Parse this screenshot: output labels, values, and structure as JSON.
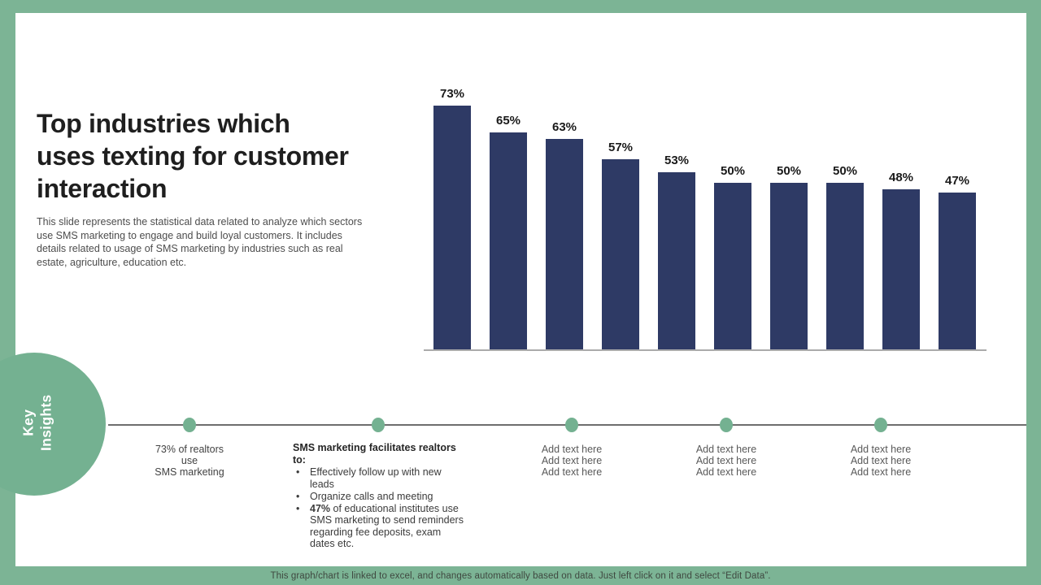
{
  "slide": {
    "title": "Top industries which uses texting for customer interaction",
    "description": "This slide represents the statistical data related to analyze which sectors use SMS marketing to engage and build loyal customers. It includes details related to usage of SMS marketing by industries such as real estate, agriculture, education etc.",
    "footer_note": "This graph/chart is linked to excel, and changes automatically based on data. Just left click on it and select “Edit Data”."
  },
  "colors": {
    "frame_green": "#7CB495",
    "accent_green": "#74B191",
    "bar_navy": "#2E3A65",
    "axis_gray": "#ABABAB"
  },
  "chart_data": {
    "type": "bar",
    "title": "",
    "xlabel": "",
    "ylabel": "",
    "values": [
      73,
      65,
      63,
      57,
      53,
      50,
      50,
      50,
      48,
      47
    ],
    "data_labels": [
      "73%",
      "65%",
      "63%",
      "57%",
      "53%",
      "50%",
      "50%",
      "50%",
      "48%",
      "47%"
    ],
    "ylim": [
      0,
      80
    ],
    "bar_color": "#2E3A65",
    "grid": false,
    "legend": "none",
    "axis_tick_labels_visible": false
  },
  "key_insights": {
    "label_line1": "Key",
    "label_line2": "Insights",
    "columns": [
      {
        "lines": [
          "73% of realtors",
          "use",
          "SMS marketing"
        ]
      },
      {
        "heading": "SMS marketing facilitates realtors to:",
        "bullet_char": "•",
        "bullets": [
          {
            "bold": "",
            "text": "Effectively follow up with new leads"
          },
          {
            "bold": "",
            "text": "Organize calls and meeting"
          },
          {
            "bold": "47%",
            "text": " of educational institutes use SMS marketing to send reminders regarding fee deposits, exam dates etc."
          }
        ]
      },
      {
        "lines": [
          "Add text here",
          "Add text here",
          "Add text here"
        ]
      },
      {
        "lines": [
          "Add text here",
          "Add text here",
          "Add text here"
        ]
      },
      {
        "lines": [
          "Add text here",
          "Add text here",
          "Add text here"
        ]
      }
    ]
  }
}
